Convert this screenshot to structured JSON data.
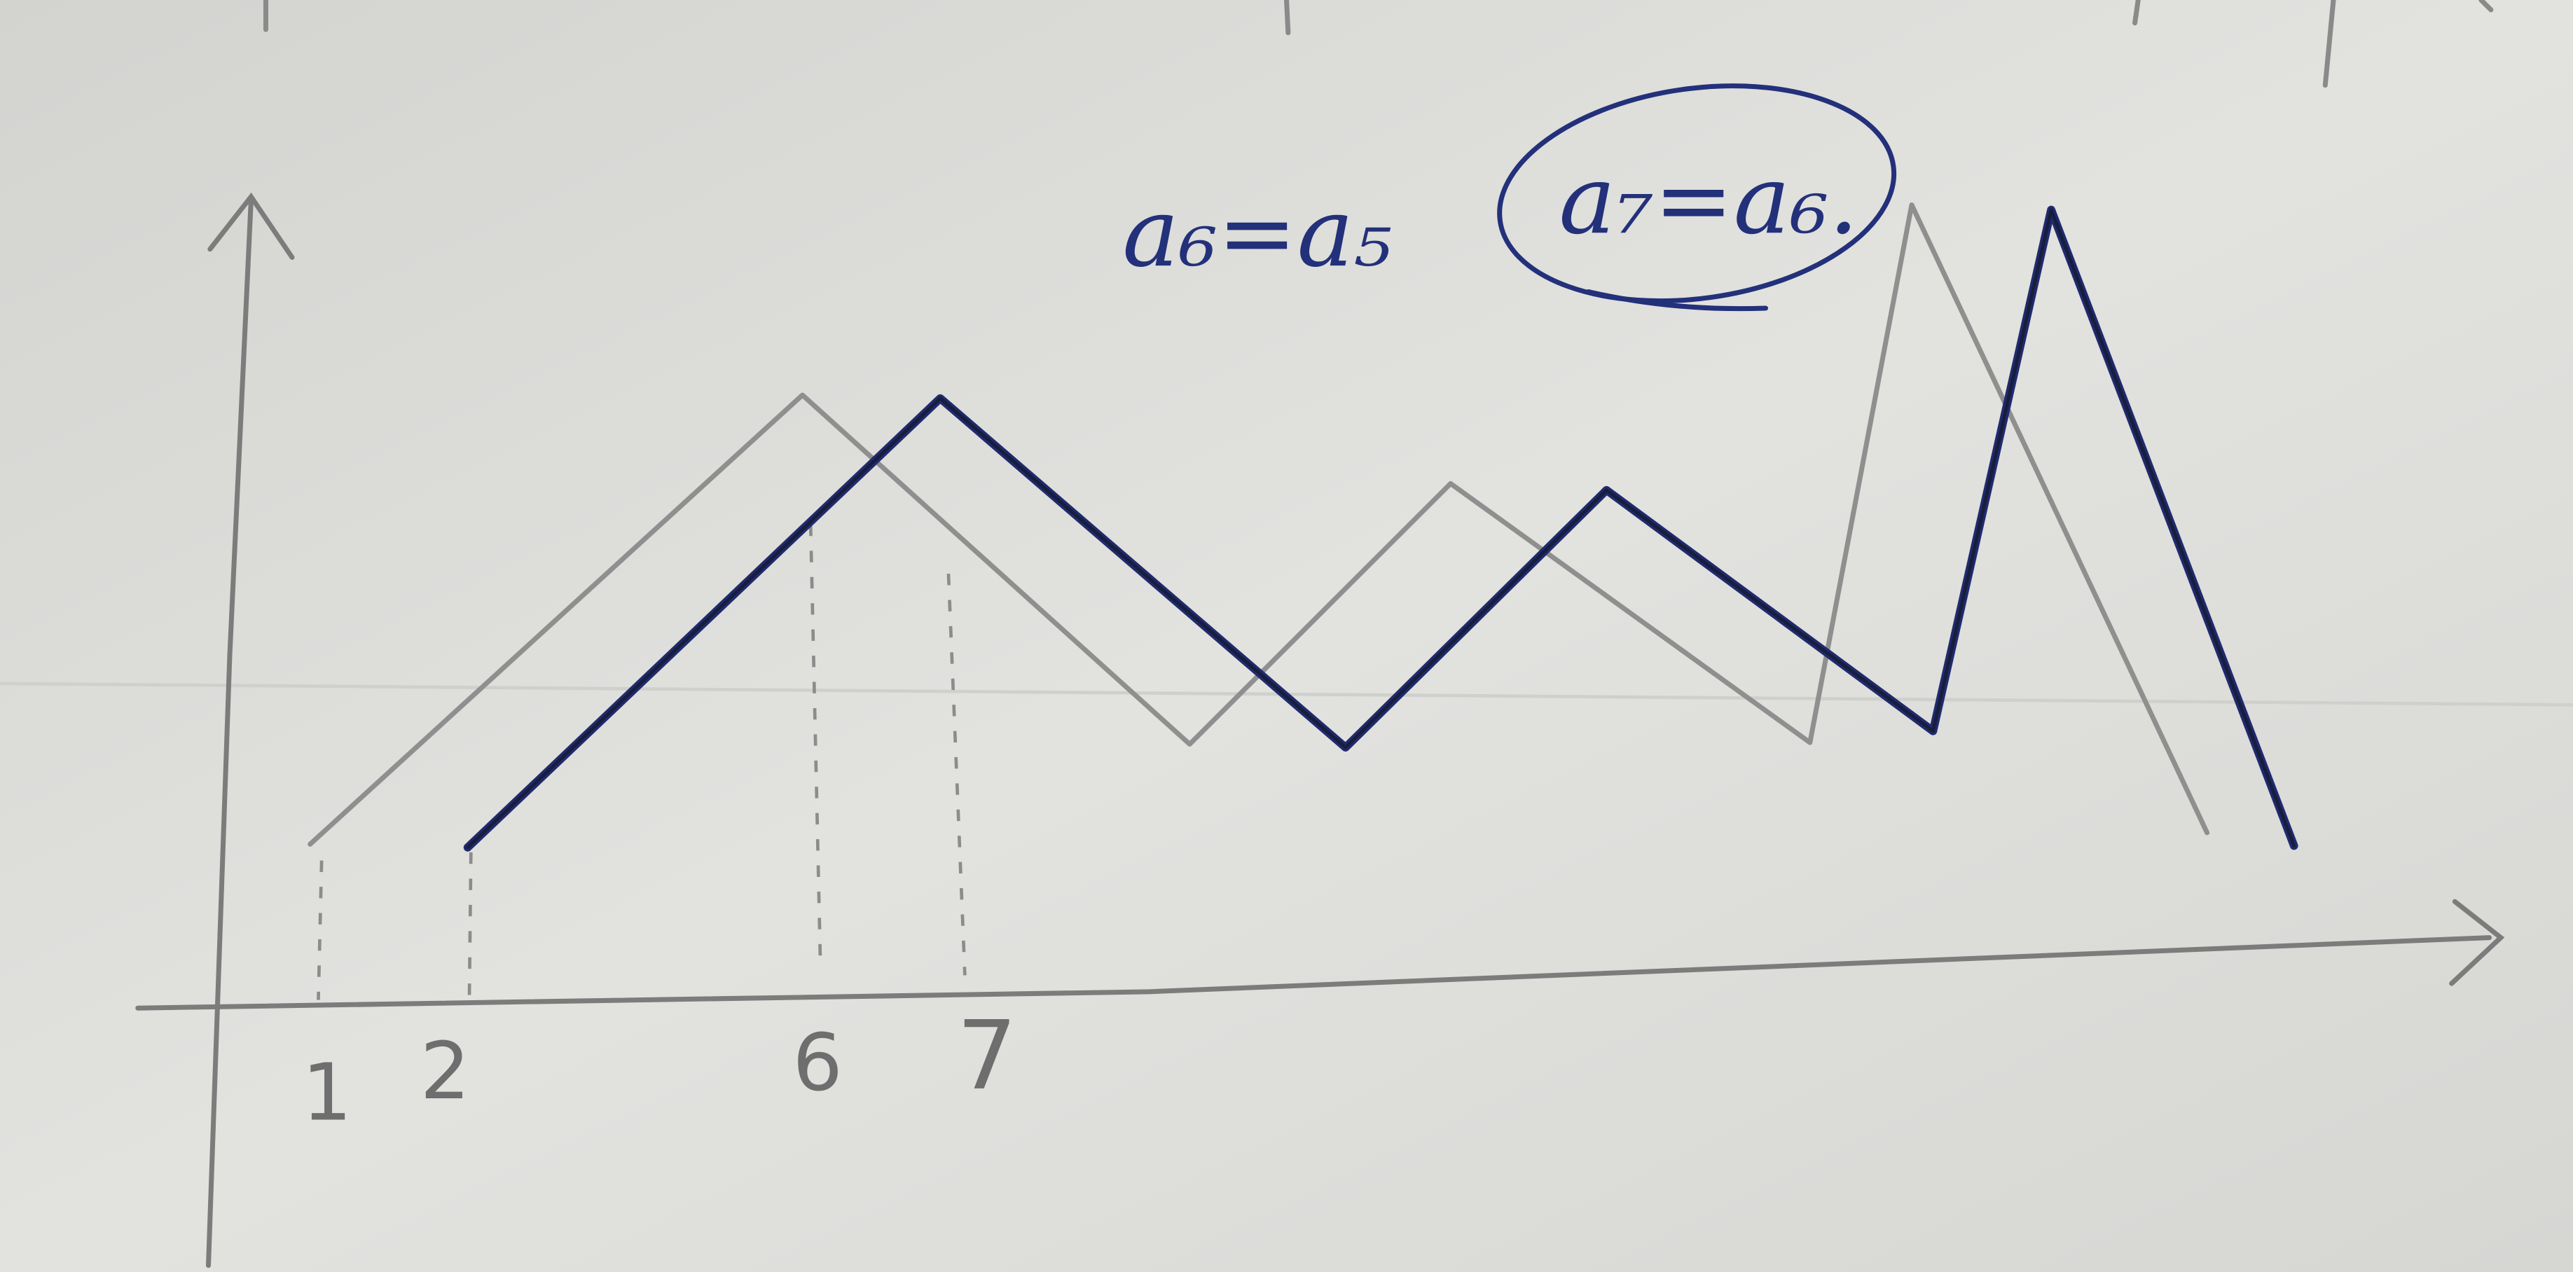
{
  "x_tick_labels": [
    "1",
    "2",
    "6",
    "7"
  ],
  "equations": {
    "first": "a₆=a₅",
    "circled": "a₇=a₆."
  },
  "colors": {
    "paper": "#dcdcd9",
    "pencil": "#8f8f8f",
    "ink": "#1f2a6e"
  }
}
